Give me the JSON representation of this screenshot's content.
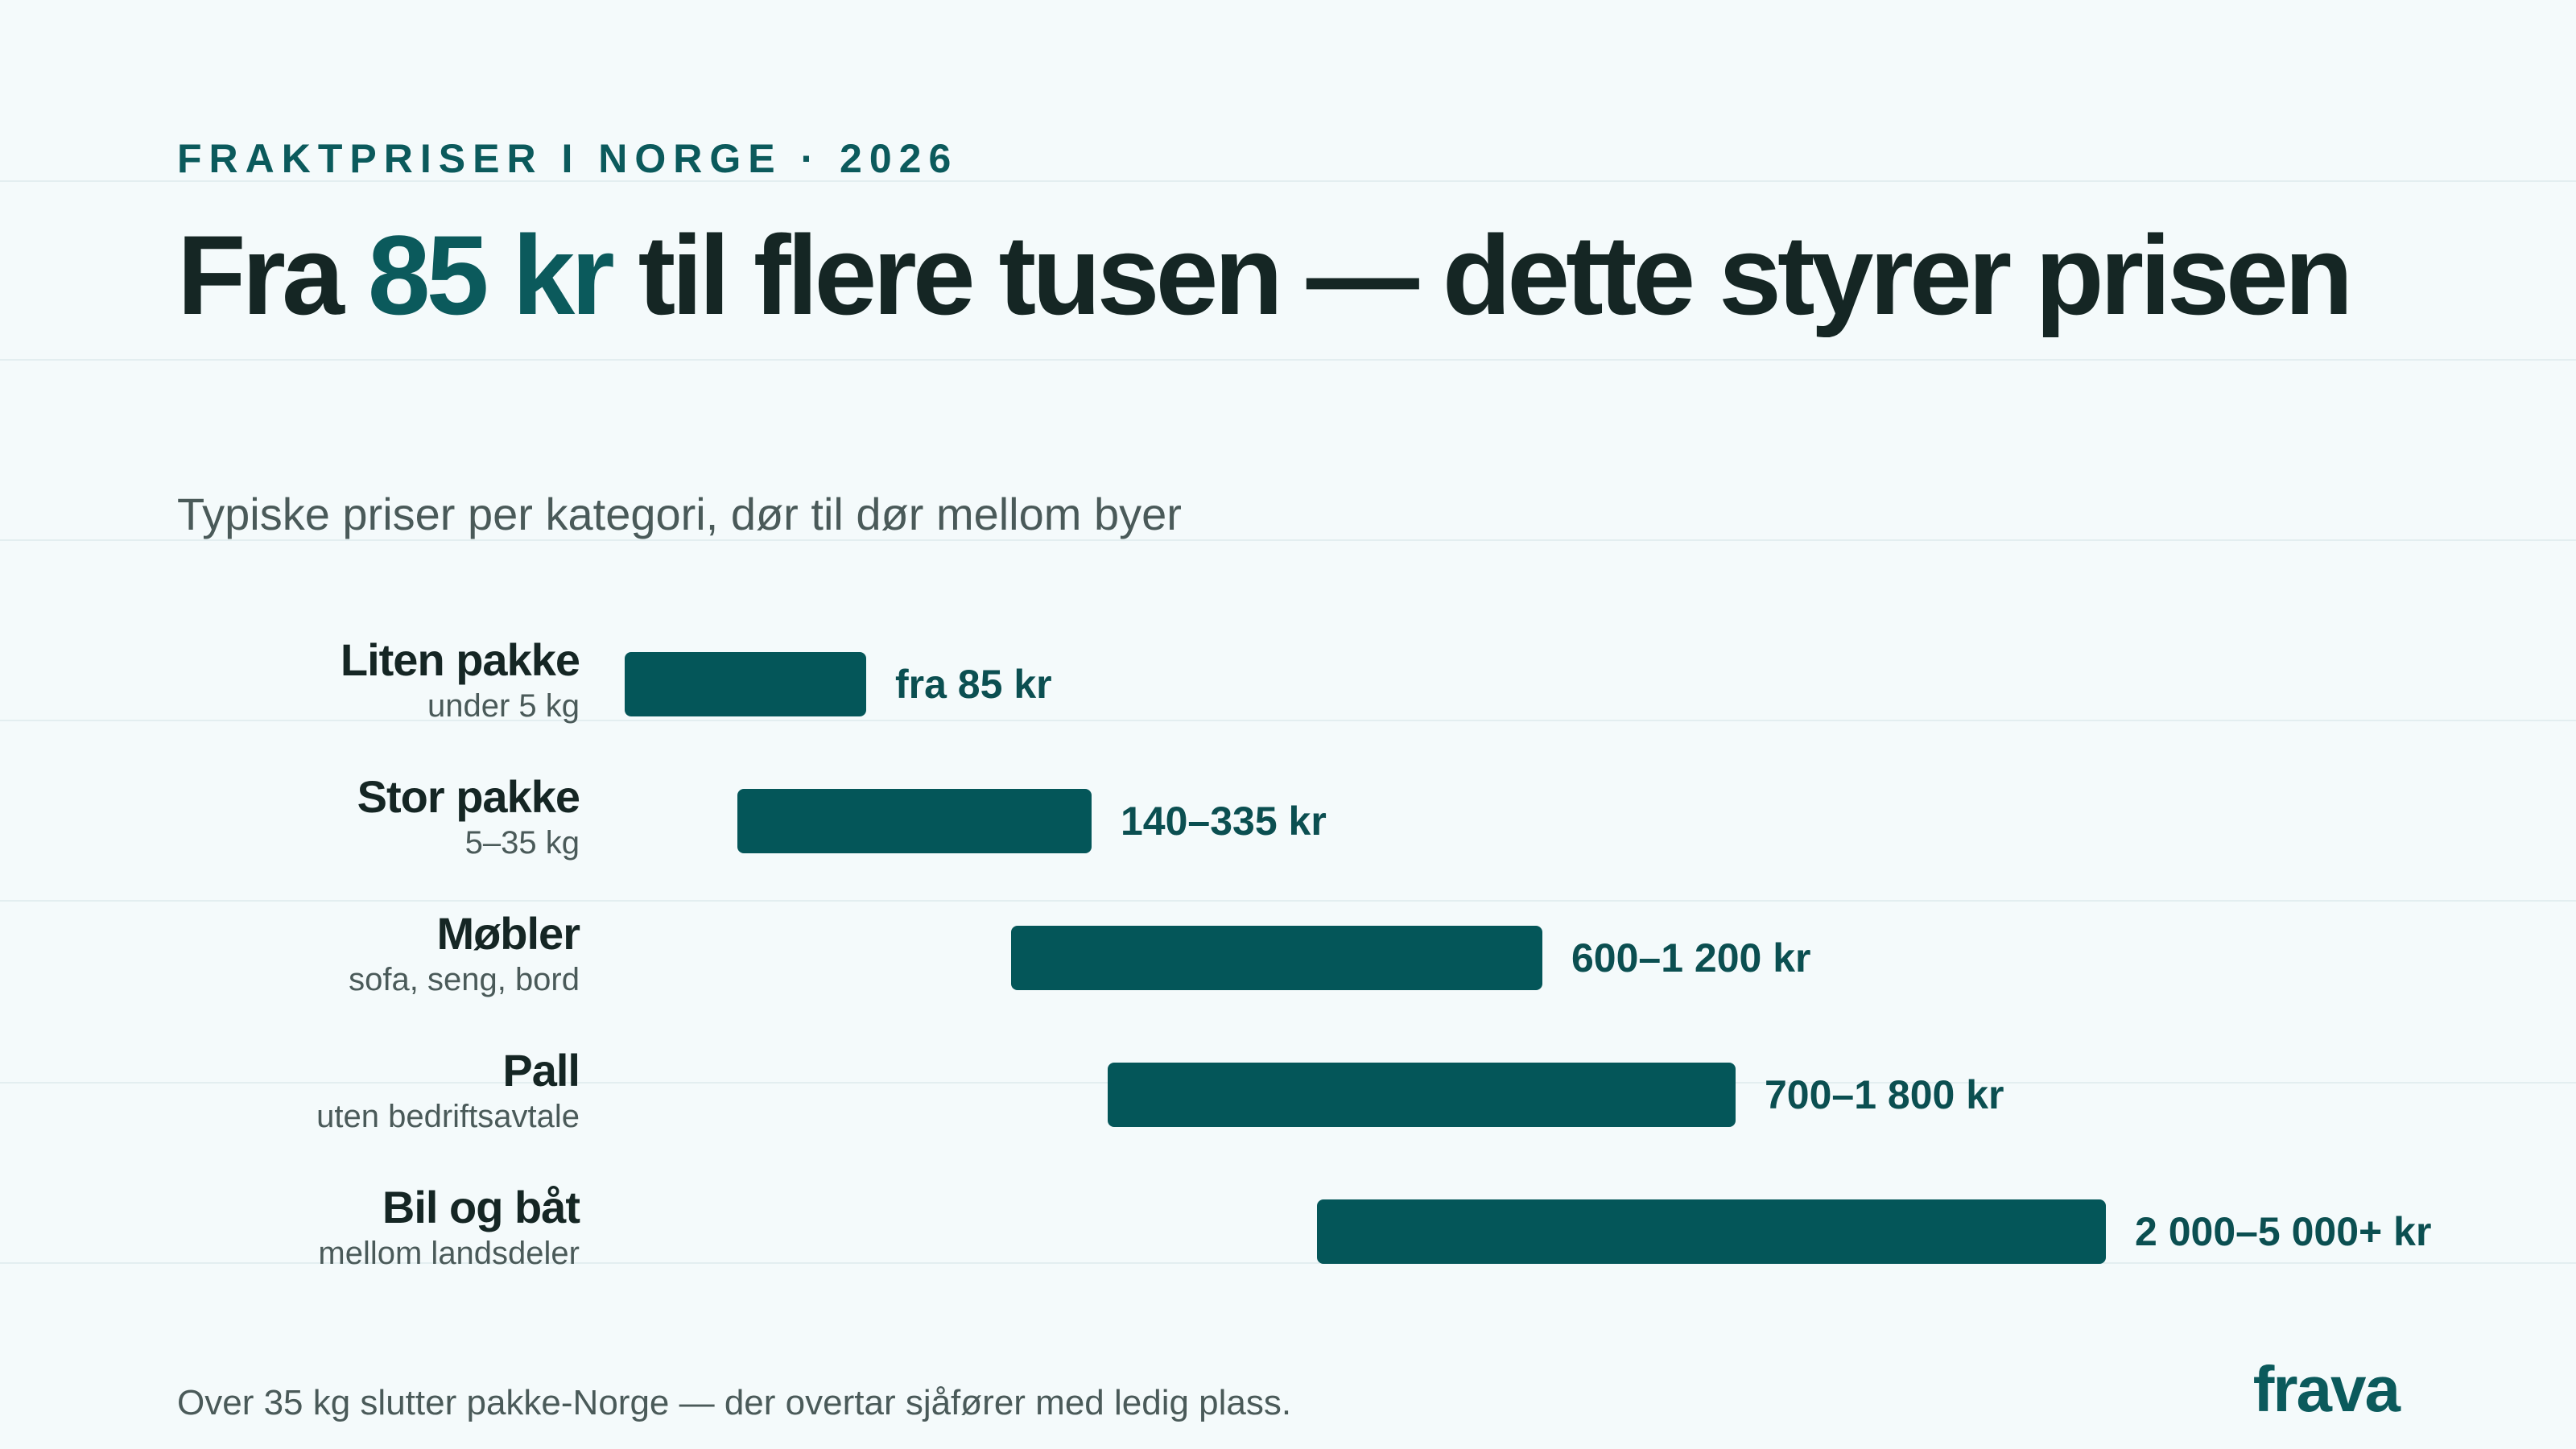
{
  "eyebrow": "FRAKTPRISER I NORGE · 2026",
  "headline": {
    "part1": "Fra ",
    "accent": "85 kr",
    "part2": " til flere tusen — dette styrer prisen"
  },
  "subtitle": "Typiske priser per kategori, dør til dør mellom byer",
  "colors": {
    "background": "#f4fafb",
    "accent": "#0b5a5c",
    "bar": "#045659",
    "text": "#152624",
    "muted": "#4a5a59"
  },
  "chart_data": {
    "type": "bar",
    "orientation": "horizontal",
    "range_bars": true,
    "categories": [
      "Liten pakke",
      "Stor pakke",
      "Møbler",
      "Pall",
      "Bil og båt"
    ],
    "category_descriptions": [
      "under 5 kg",
      "5–35 kg",
      "sofa, seng, bord",
      "uten bedriftsavtale",
      "mellom landsdeler"
    ],
    "value_labels": [
      "fra 85 kr",
      "140–335 kr",
      "600–1 200 kr",
      "700–1 800 kr",
      "2 000–5 000+ kr"
    ],
    "ranges": [
      [
        85,
        85
      ],
      [
        140,
        335
      ],
      [
        600,
        1200
      ],
      [
        700,
        1800
      ],
      [
        2000,
        5000
      ]
    ],
    "axis_scale": "ordinal-tiered",
    "grid": false,
    "legend": "none"
  },
  "footnote": "Over 35 kg slutter pakke-Norge — der overtar sjåfører med ledig plass.",
  "logo": "frava"
}
